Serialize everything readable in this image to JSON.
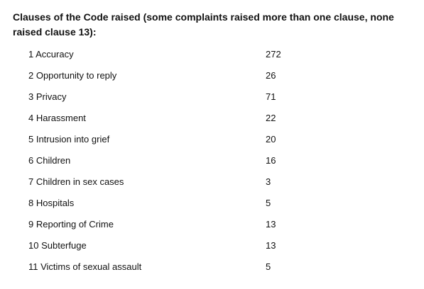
{
  "heading": "Clauses of the Code raised (some complaints raised more than one clause, none raised clause 13):",
  "rows": [
    {
      "clause": "1 Accuracy",
      "count": "272"
    },
    {
      "clause": "2 Opportunity to reply",
      "count": "26"
    },
    {
      "clause": "3 Privacy",
      "count": "71"
    },
    {
      "clause": "4 Harassment",
      "count": "22"
    },
    {
      "clause": "5 Intrusion into grief",
      "count": "20"
    },
    {
      "clause": "6 Children",
      "count": "16"
    },
    {
      "clause": "7 Children in sex cases",
      "count": "3"
    },
    {
      "clause": "8 Hospitals",
      "count": "5"
    },
    {
      "clause": "9 Reporting of Crime",
      "count": "13"
    },
    {
      "clause": "10 Subterfuge",
      "count": "13"
    },
    {
      "clause": "11 Victims of sexual assault",
      "count": "5"
    }
  ]
}
